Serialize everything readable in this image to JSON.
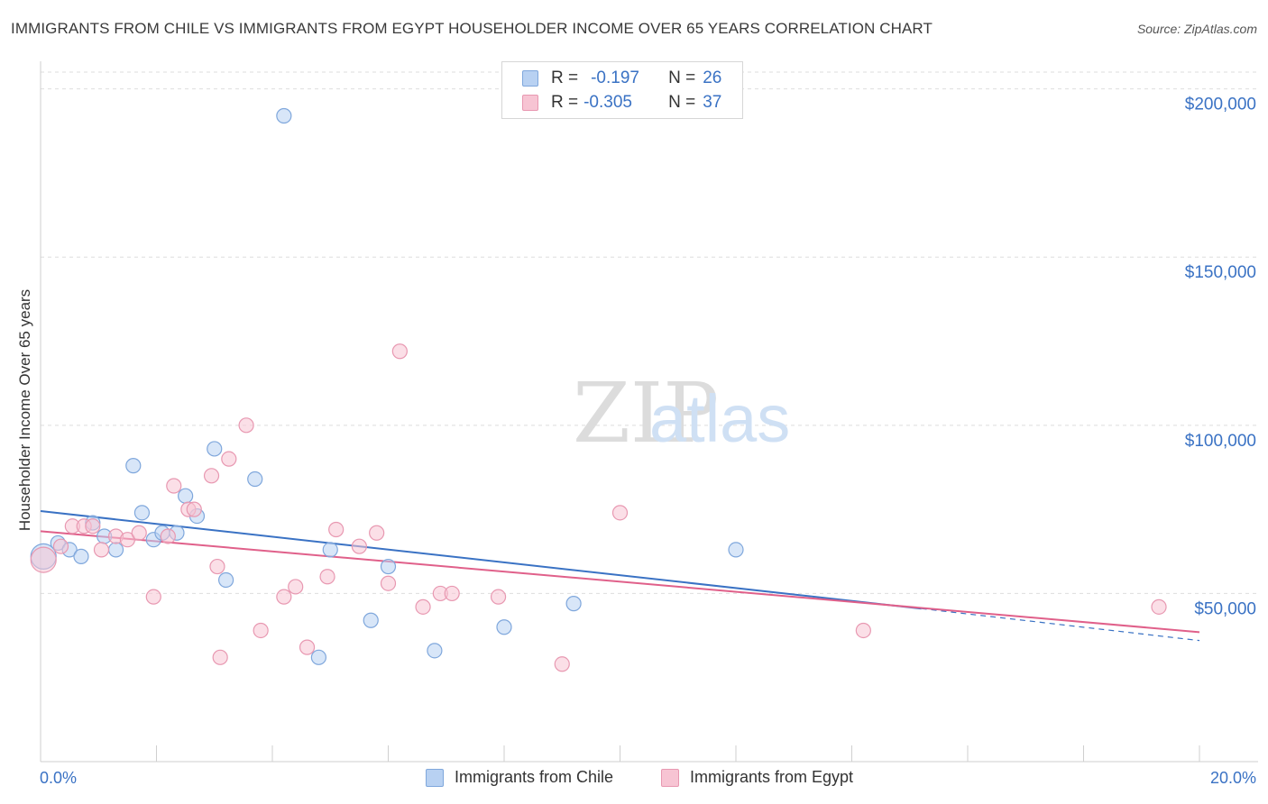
{
  "header": {
    "title": "IMMIGRANTS FROM CHILE VS IMMIGRANTS FROM EGYPT HOUSEHOLDER INCOME OVER 65 YEARS CORRELATION CHART",
    "source": "Source: ZipAtlas.com"
  },
  "watermark": {
    "zip": "ZIP",
    "atlas": "atlas"
  },
  "legend": {
    "chile": {
      "r_label": "R =",
      "r_value": "-0.197",
      "n_label": "N =",
      "n_value": "26"
    },
    "egypt": {
      "r_label": "R =",
      "r_value": "-0.305",
      "n_label": "N =",
      "n_value": "37"
    }
  },
  "bottom_legend": {
    "chile": "Immigrants from Chile",
    "egypt": "Immigrants from Egypt"
  },
  "colors": {
    "chile_fill": "#b8d1f2",
    "chile_stroke": "#7fa7dc",
    "chile_line": "#3a72c4",
    "egypt_fill": "#f7c4d3",
    "egypt_stroke": "#e898b1",
    "egypt_line": "#e0608a",
    "axis_label": "#3a72c4",
    "grid": "#dedede"
  },
  "chart_data": {
    "type": "scatter",
    "title": "IMMIGRANTS FROM CHILE VS IMMIGRANTS FROM EGYPT HOUSEHOLDER INCOME OVER 65 YEARS CORRELATION CHART",
    "xlabel": "",
    "ylabel": "Householder Income Over 65 years",
    "xlim": [
      0,
      20
    ],
    "ylim": [
      0,
      205000
    ],
    "x_tick_labels": [
      "0.0%",
      "20.0%"
    ],
    "y_ticks": [
      50000,
      100000,
      150000,
      200000
    ],
    "y_tick_labels": [
      "$50,000",
      "$100,000",
      "$150,000",
      "$200,000"
    ],
    "grid": true,
    "series": [
      {
        "name": "Immigrants from Chile",
        "r": -0.197,
        "n": 26,
        "points": [
          {
            "x": 0.05,
            "y": 61000,
            "size": 14
          },
          {
            "x": 0.3,
            "y": 65000,
            "size": 8
          },
          {
            "x": 0.5,
            "y": 63000,
            "size": 8
          },
          {
            "x": 0.7,
            "y": 61000,
            "size": 8
          },
          {
            "x": 0.9,
            "y": 71000,
            "size": 8
          },
          {
            "x": 1.1,
            "y": 67000,
            "size": 8
          },
          {
            "x": 1.3,
            "y": 63000,
            "size": 8
          },
          {
            "x": 1.6,
            "y": 88000,
            "size": 8
          },
          {
            "x": 1.75,
            "y": 74000,
            "size": 8
          },
          {
            "x": 1.95,
            "y": 66000,
            "size": 8
          },
          {
            "x": 2.1,
            "y": 68000,
            "size": 8
          },
          {
            "x": 2.35,
            "y": 68000,
            "size": 8
          },
          {
            "x": 2.5,
            "y": 79000,
            "size": 8
          },
          {
            "x": 2.7,
            "y": 73000,
            "size": 8
          },
          {
            "x": 3.0,
            "y": 93000,
            "size": 8
          },
          {
            "x": 3.2,
            "y": 54000,
            "size": 8
          },
          {
            "x": 3.7,
            "y": 84000,
            "size": 8
          },
          {
            "x": 4.2,
            "y": 192000,
            "size": 8
          },
          {
            "x": 4.8,
            "y": 31000,
            "size": 8
          },
          {
            "x": 5.0,
            "y": 63000,
            "size": 8
          },
          {
            "x": 5.7,
            "y": 42000,
            "size": 8
          },
          {
            "x": 6.0,
            "y": 58000,
            "size": 8
          },
          {
            "x": 6.8,
            "y": 33000,
            "size": 8
          },
          {
            "x": 8.0,
            "y": 40000,
            "size": 8
          },
          {
            "x": 9.2,
            "y": 47000,
            "size": 8
          },
          {
            "x": 12.0,
            "y": 63000,
            "size": 8
          }
        ],
        "trend": {
          "x0": 0,
          "y0": 74500,
          "x1": 15.2,
          "y1": 45500,
          "dash_x1": 20,
          "dash_y1": 36000
        }
      },
      {
        "name": "Immigrants from Egypt",
        "r": -0.305,
        "n": 37,
        "points": [
          {
            "x": 0.05,
            "y": 60000,
            "size": 14
          },
          {
            "x": 0.35,
            "y": 64000,
            "size": 8
          },
          {
            "x": 0.55,
            "y": 70000,
            "size": 8
          },
          {
            "x": 0.75,
            "y": 70000,
            "size": 8
          },
          {
            "x": 0.9,
            "y": 70000,
            "size": 8
          },
          {
            "x": 1.05,
            "y": 63000,
            "size": 8
          },
          {
            "x": 1.3,
            "y": 67000,
            "size": 8
          },
          {
            "x": 1.5,
            "y": 66000,
            "size": 8
          },
          {
            "x": 1.7,
            "y": 68000,
            "size": 8
          },
          {
            "x": 1.95,
            "y": 49000,
            "size": 8
          },
          {
            "x": 2.2,
            "y": 67000,
            "size": 8
          },
          {
            "x": 2.3,
            "y": 82000,
            "size": 8
          },
          {
            "x": 2.55,
            "y": 75000,
            "size": 8
          },
          {
            "x": 2.65,
            "y": 75000,
            "size": 8
          },
          {
            "x": 2.95,
            "y": 85000,
            "size": 8
          },
          {
            "x": 3.05,
            "y": 58000,
            "size": 8
          },
          {
            "x": 3.1,
            "y": 31000,
            "size": 8
          },
          {
            "x": 3.25,
            "y": 90000,
            "size": 8
          },
          {
            "x": 3.55,
            "y": 100000,
            "size": 8
          },
          {
            "x": 3.8,
            "y": 39000,
            "size": 8
          },
          {
            "x": 4.2,
            "y": 49000,
            "size": 8
          },
          {
            "x": 4.4,
            "y": 52000,
            "size": 8
          },
          {
            "x": 4.6,
            "y": 34000,
            "size": 8
          },
          {
            "x": 4.95,
            "y": 55000,
            "size": 8
          },
          {
            "x": 5.1,
            "y": 69000,
            "size": 8
          },
          {
            "x": 5.5,
            "y": 64000,
            "size": 8
          },
          {
            "x": 5.8,
            "y": 68000,
            "size": 8
          },
          {
            "x": 6.0,
            "y": 53000,
            "size": 8
          },
          {
            "x": 6.2,
            "y": 122000,
            "size": 8
          },
          {
            "x": 6.6,
            "y": 46000,
            "size": 8
          },
          {
            "x": 6.9,
            "y": 50000,
            "size": 8
          },
          {
            "x": 7.1,
            "y": 50000,
            "size": 8
          },
          {
            "x": 7.9,
            "y": 49000,
            "size": 8
          },
          {
            "x": 9.0,
            "y": 29000,
            "size": 8
          },
          {
            "x": 10.0,
            "y": 74000,
            "size": 8
          },
          {
            "x": 14.2,
            "y": 39000,
            "size": 8
          },
          {
            "x": 19.3,
            "y": 46000,
            "size": 8
          }
        ],
        "trend": {
          "x0": 0,
          "y0": 68500,
          "x1": 20,
          "y1": 38500
        }
      }
    ]
  }
}
